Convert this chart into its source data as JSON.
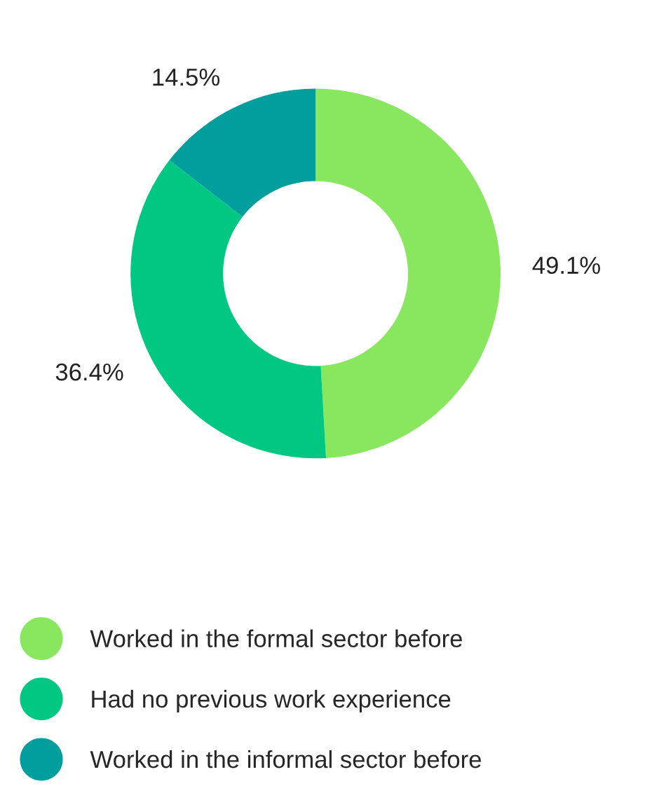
{
  "chart_data": {
    "type": "donut",
    "categories": [
      "Worked in the formal sector before",
      "Had no previous work experience",
      "Worked in the informal sector before"
    ],
    "values": [
      49.1,
      36.4,
      14.5
    ],
    "colors": [
      "#88e65f",
      "#00c882",
      "#009e9c"
    ],
    "value_labels": [
      "49.1%",
      "36.4%",
      "14.5%"
    ],
    "legend": "bottom"
  }
}
